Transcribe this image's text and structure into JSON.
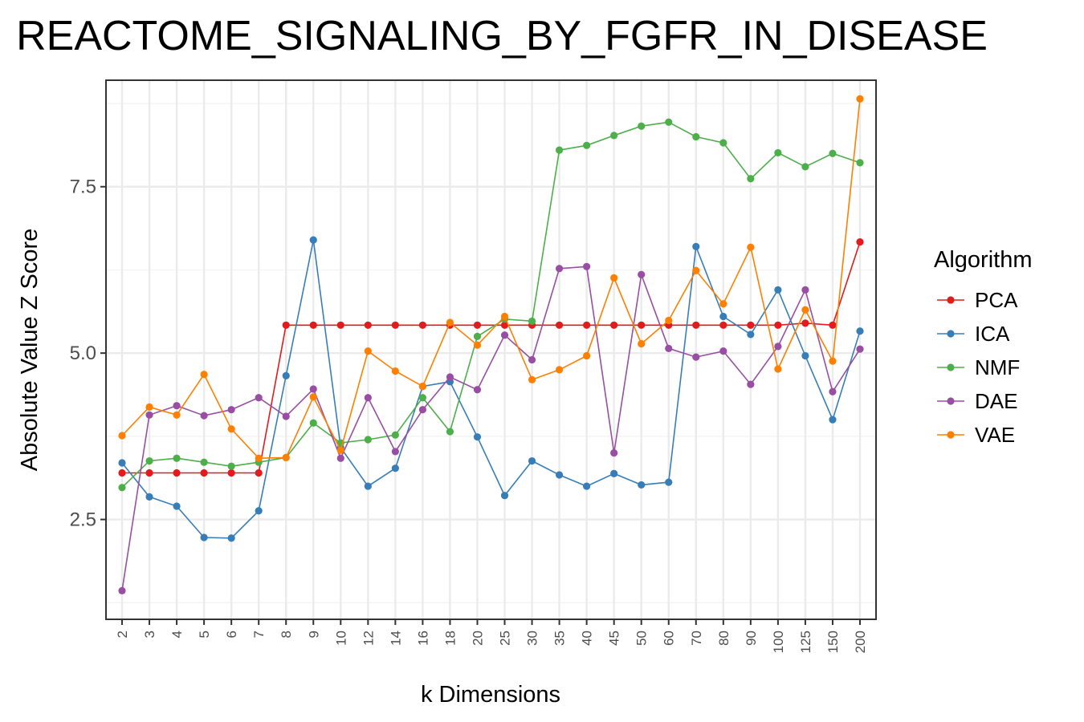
{
  "chart_data": {
    "type": "line",
    "title": "REACTOME_SIGNALING_BY_FGFR_IN_DISEASE",
    "xlabel": "k Dimensions",
    "ylabel": "Absolute Value Z Score",
    "ylim": [
      1.0,
      9.1
    ],
    "yticks": [
      2.5,
      5.0,
      7.5
    ],
    "ytick_labels": [
      "2.5",
      "5.0",
      "7.5"
    ],
    "grid": true,
    "legend": {
      "title": "Algorithm",
      "position": "right"
    },
    "categories": [
      "2",
      "3",
      "4",
      "5",
      "6",
      "7",
      "8",
      "9",
      "10",
      "12",
      "14",
      "16",
      "18",
      "20",
      "25",
      "30",
      "35",
      "40",
      "45",
      "50",
      "60",
      "70",
      "80",
      "90",
      "100",
      "125",
      "150",
      "200"
    ],
    "series": [
      {
        "name": "PCA",
        "color": "#e41a1c",
        "values": [
          3.2,
          3.2,
          3.2,
          3.2,
          3.2,
          3.2,
          5.42,
          5.42,
          5.42,
          5.42,
          5.42,
          5.42,
          5.42,
          5.42,
          5.42,
          5.42,
          5.42,
          5.42,
          5.42,
          5.42,
          5.42,
          5.42,
          5.42,
          5.42,
          5.42,
          5.45,
          5.42,
          6.67
        ]
      },
      {
        "name": "ICA",
        "color": "#377eb8",
        "values": [
          3.35,
          2.84,
          2.7,
          2.23,
          2.22,
          2.63,
          4.66,
          6.7,
          3.58,
          3.0,
          3.27,
          4.5,
          4.57,
          3.74,
          2.86,
          3.38,
          3.17,
          3.0,
          3.19,
          3.02,
          3.06,
          6.6,
          5.55,
          5.28,
          5.95,
          4.96,
          4.0,
          5.33
        ]
      },
      {
        "name": "NMF",
        "color": "#4daf4a",
        "values": [
          2.98,
          3.38,
          3.42,
          3.36,
          3.3,
          3.36,
          3.43,
          3.95,
          3.65,
          3.7,
          3.77,
          4.33,
          3.82,
          5.25,
          5.51,
          5.48,
          8.05,
          8.12,
          8.27,
          8.41,
          8.47,
          8.25,
          8.16,
          7.62,
          8.01,
          7.8,
          8.0,
          7.86
        ]
      },
      {
        "name": "DAE",
        "color": "#984ea3",
        "values": [
          1.43,
          4.07,
          4.21,
          4.06,
          4.15,
          4.33,
          4.05,
          4.46,
          3.42,
          4.33,
          3.52,
          4.15,
          4.64,
          4.45,
          5.27,
          4.9,
          6.27,
          6.3,
          3.5,
          6.18,
          5.07,
          4.94,
          5.03,
          4.53,
          5.1,
          5.95,
          4.42,
          5.06
        ]
      },
      {
        "name": "VAE",
        "color": "#ff7f00",
        "values": [
          3.76,
          4.19,
          4.07,
          4.68,
          3.86,
          3.42,
          3.43,
          4.34,
          3.54,
          5.03,
          4.73,
          4.5,
          5.46,
          5.12,
          5.55,
          4.6,
          4.75,
          4.96,
          6.13,
          5.14,
          5.49,
          6.24,
          5.74,
          6.59,
          4.76,
          5.65,
          4.88,
          8.82
        ]
      }
    ]
  }
}
